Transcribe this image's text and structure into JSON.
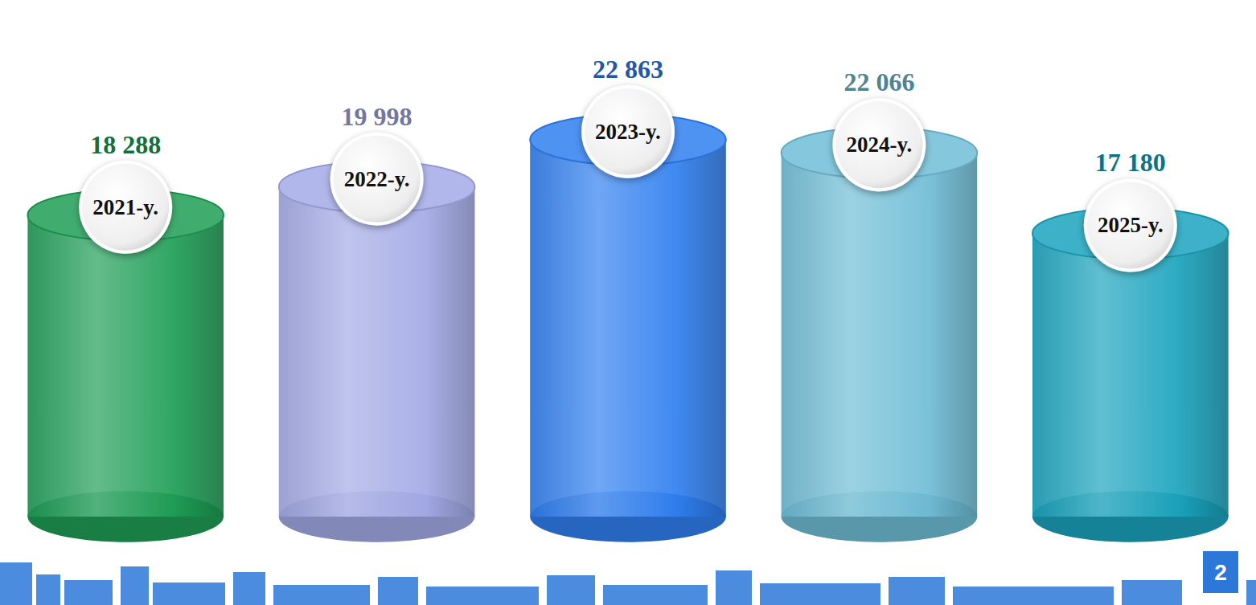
{
  "chart_data": {
    "type": "bar",
    "categories": [
      "2021-y.",
      "2022-y.",
      "2023-y.",
      "2024-y.",
      "2025-y."
    ],
    "values": [
      18288,
      19998,
      22863,
      22066,
      17180
    ],
    "value_labels": [
      "18 288",
      "19 998",
      "22 863",
      "22 066",
      "17 180"
    ],
    "colors": [
      "#1e9e55",
      "#a3aae6",
      "#2f7ff0",
      "#6fbdd6",
      "#1aa3bd"
    ],
    "ylim": [
      0,
      25000
    ],
    "yticks": [
      0,
      25000
    ],
    "grid": false,
    "data_labels": true,
    "tick_labels": false
  },
  "page_number": "2"
}
